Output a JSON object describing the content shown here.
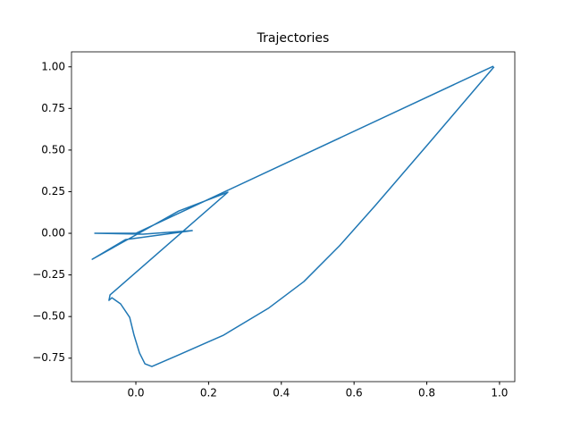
{
  "chart_data": {
    "type": "line",
    "title": "Trajectories",
    "x": [
      0.983,
      0.0,
      -0.113,
      0.02,
      0.155,
      -0.029,
      -0.12,
      0.118,
      0.253,
      -0.071,
      -0.074,
      -0.066,
      -0.042,
      -0.017,
      -0.005,
      0.01,
      0.025,
      0.044,
      0.118,
      0.241,
      0.364,
      0.462,
      0.56,
      0.658,
      0.806,
      0.953,
      0.985
    ],
    "series": [
      {
        "color": "#1f77b4",
        "values": [
          1.004,
          0.0,
          0.0,
          -0.005,
          0.016,
          -0.038,
          -0.156,
          0.134,
          0.247,
          -0.37,
          -0.403,
          -0.387,
          -0.424,
          -0.505,
          -0.612,
          -0.719,
          -0.784,
          -0.8,
          -0.73,
          -0.612,
          -0.451,
          -0.29,
          -0.075,
          0.166,
          0.542,
          0.918,
          1.0
        ]
      }
    ],
    "xlim": [
      -0.177,
      1.042
    ],
    "ylim": [
      -0.891,
      1.09
    ],
    "xticks": [
      {
        "value": 0,
        "label": "0.0"
      },
      {
        "value": 0.2,
        "label": "0.2"
      },
      {
        "value": 0.4,
        "label": "0.4"
      },
      {
        "value": 0.6,
        "label": "0.6"
      },
      {
        "value": 0.8,
        "label": "0.8"
      },
      {
        "value": 1,
        "label": "1.0"
      }
    ],
    "yticks": [
      {
        "value": -0.75,
        "label": "−0.75"
      },
      {
        "value": -0.5,
        "label": "−0.50"
      },
      {
        "value": -0.25,
        "label": "−0.25"
      },
      {
        "value": 0,
        "label": "0.00"
      },
      {
        "value": 0.25,
        "label": "0.25"
      },
      {
        "value": 0.5,
        "label": "0.50"
      },
      {
        "value": 0.75,
        "label": "0.75"
      },
      {
        "value": 1,
        "label": "1.00"
      }
    ]
  }
}
